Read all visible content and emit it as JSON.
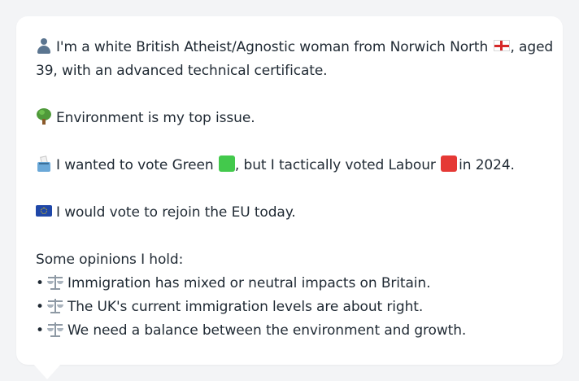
{
  "profile": {
    "line1_before_flag": "I'm a white British Atheist/Agnostic woman from Norwich North",
    "line1_after_flag": ", aged",
    "line2": "39, with an advanced technical certificate.",
    "top_issue": "Environment is my top issue.",
    "vote_part1": "I wanted to vote Green",
    "vote_part2": ", but I tactically voted Labour",
    "vote_part3": "in 2024.",
    "eu_line": "I would vote to rejoin the EU today.",
    "opinions_heading": "Some opinions I hold:",
    "opinions": [
      "Immigration has mixed or neutral impacts on Britain.",
      "The UK's current immigration levels are about right.",
      "We need a balance between the environment and growth."
    ],
    "bullet": "•"
  },
  "icons": {
    "person": "person-icon",
    "england_flag": "england-flag-icon",
    "tree": "tree-icon",
    "ballot_box": "ballot-box-icon",
    "green_square": "green-square-icon",
    "red_square": "red-square-icon",
    "eu_flag": "eu-flag-icon",
    "balance_scale": "balance-scale-icon"
  },
  "colors": {
    "green": "#43c94c",
    "red": "#e53935",
    "card_bg": "#ffffff",
    "page_bg": "#f3f4f6"
  }
}
